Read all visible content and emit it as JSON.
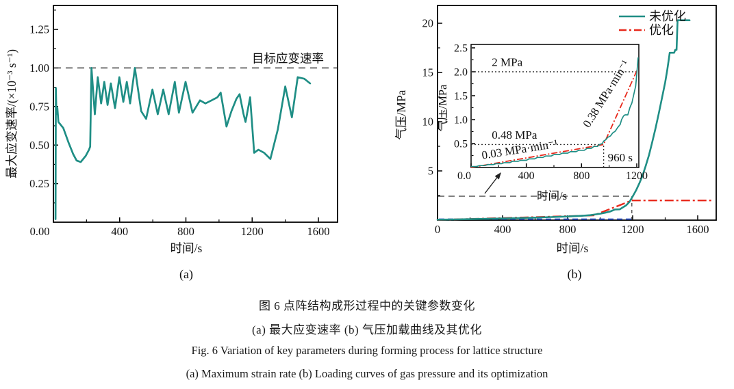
{
  "colors": {
    "teal": "#1f8e85",
    "red": "#e8291c",
    "blue": "#2b50c8",
    "axis": "#000000",
    "dash_gray": "#3a3a3a",
    "text": "#111111"
  },
  "captions": {
    "line1": "图 6  点阵结构成形过程中的关键参数变化",
    "line2": "(a) 最大应变速率    (b) 气压加载曲线及其优化",
    "line3": "Fig. 6  Variation of key parameters during forming process for lattice structure",
    "line4": "(a) Maximum strain rate    (b) Loading curves of gas pressure and its optimization"
  },
  "chart_data": [
    {
      "panel_label": "(a)",
      "type": "line",
      "xlabel": "时间/s",
      "ylabel": "最大应变速率/(×10⁻³ s⁻¹)",
      "xlim": [
        0,
        1716
      ],
      "ylim": [
        0,
        1.405
      ],
      "grid": false,
      "xticks": [
        {
          "v": 0,
          "label": "0.00",
          "dx": -20
        },
        {
          "v": 400,
          "label": "400"
        },
        {
          "v": 800,
          "label": "800"
        },
        {
          "v": 1200,
          "label": "1200"
        },
        {
          "v": 1600,
          "label": "1600"
        }
      ],
      "xminor": [
        200,
        600,
        1000,
        1400
      ],
      "yticks": [
        {
          "v": 0.25,
          "label": "0.25"
        },
        {
          "v": 0.5,
          "label": "0.50"
        },
        {
          "v": 0.75,
          "label": "0.75"
        },
        {
          "v": 1.0,
          "label": "1.00"
        },
        {
          "v": 1.25,
          "label": "1.25"
        }
      ],
      "yminor": [
        0.125,
        0.375,
        0.625,
        0.875,
        1.125,
        1.375
      ],
      "target_line": {
        "y": 1.0,
        "label": "目标应变速率"
      },
      "series": [
        {
          "name": "最大应变速率",
          "color": "teal",
          "style": "solid",
          "x": [
            13,
            15,
            18,
            24,
            30,
            60,
            90,
            120,
            140,
            165,
            195,
            215,
            222,
            230,
            250,
            268,
            288,
            307,
            327,
            347,
            372,
            398,
            422,
            443,
            463,
            492,
            530,
            560,
            598,
            630,
            663,
            696,
            733,
            758,
            798,
            840,
            885,
            918,
            955,
            990,
            1010,
            1045,
            1075,
            1105,
            1124,
            1148,
            1160,
            1188,
            1212,
            1238,
            1272,
            1310,
            1355,
            1400,
            1440,
            1475,
            1515,
            1550
          ],
          "y": [
            0.02,
            0.87,
            0.7,
            0.74,
            0.65,
            0.61,
            0.52,
            0.44,
            0.4,
            0.39,
            0.43,
            0.47,
            0.49,
            1.0,
            0.7,
            0.94,
            0.77,
            0.91,
            0.76,
            0.9,
            0.74,
            0.94,
            0.78,
            0.91,
            0.77,
            1.0,
            0.72,
            0.67,
            0.86,
            0.7,
            0.86,
            0.7,
            0.91,
            0.71,
            0.91,
            0.71,
            0.79,
            0.77,
            0.79,
            0.81,
            0.84,
            0.62,
            0.72,
            0.8,
            0.83,
            0.7,
            0.65,
            0.81,
            0.45,
            0.47,
            0.45,
            0.41,
            0.6,
            0.88,
            0.68,
            0.94,
            0.93,
            0.9
          ]
        }
      ]
    },
    {
      "panel_label": "(b)",
      "type": "line",
      "xlabel": "时间/s",
      "ylabel": "气压/MPa",
      "xlim": [
        0,
        1713
      ],
      "ylim": [
        0,
        21.8
      ],
      "grid": false,
      "xticks": [
        {
          "v": 0,
          "label": "0"
        },
        {
          "v": 400,
          "label": "400"
        },
        {
          "v": 800,
          "label": "800"
        },
        {
          "v": 1200,
          "label": "1200"
        },
        {
          "v": 1600,
          "label": "1600"
        }
      ],
      "xminor": [
        200,
        600,
        1000,
        1400
      ],
      "yticks": [
        {
          "v": 5,
          "label": "5"
        },
        {
          "v": 10,
          "label": "10"
        },
        {
          "v": 15,
          "label": "15"
        },
        {
          "v": 20,
          "label": "20"
        }
      ],
      "yminor": [
        2.5,
        7.5,
        12.5,
        17.5
      ],
      "legend": [
        {
          "label": "未优化",
          "color": "teal",
          "style": "solid"
        },
        {
          "label": "优化",
          "color": "red",
          "style": "dashdot"
        }
      ],
      "marker_lines": {
        "h_y": 2.43,
        "v_x": 1195,
        "blue_y": 0.1,
        "blue_x_end": 1195
      },
      "series": [
        {
          "name": "未优化",
          "color": "teal",
          "style": "solid",
          "x": [
            0,
            100,
            200,
            300,
            400,
            500,
            600,
            700,
            800,
            850,
            900,
            940,
            970,
            1000,
            1030,
            1060,
            1080,
            1090,
            1120,
            1140,
            1160,
            1180,
            1200,
            1220,
            1240,
            1260,
            1280,
            1300,
            1320,
            1340,
            1360,
            1380,
            1400,
            1412,
            1422,
            1428,
            1455,
            1462,
            1470,
            1476,
            1550
          ],
          "y": [
            0.05,
            0.07,
            0.1,
            0.13,
            0.17,
            0.21,
            0.26,
            0.31,
            0.37,
            0.41,
            0.46,
            0.51,
            0.58,
            0.65,
            0.75,
            0.87,
            1.0,
            1.08,
            1.1,
            1.3,
            1.5,
            1.85,
            2.4,
            3.0,
            3.7,
            4.5,
            5.5,
            6.6,
            7.9,
            9.3,
            10.8,
            12.4,
            14.0,
            15.2,
            16.3,
            17.0,
            17.0,
            17.3,
            17.3,
            20.3,
            20.3
          ]
        },
        {
          "name": "优化",
          "color": "red",
          "style": "dashdot",
          "x": [
            0,
            960,
            1195,
            1700
          ],
          "y": [
            0.02,
            0.48,
            2.0,
            2.0
          ]
        }
      ],
      "inset": {
        "xlabel": "时间/s",
        "ylabel": "气压/MPa",
        "xlim": [
          0,
          1215
        ],
        "ylim": [
          0,
          2.57
        ],
        "xticks": [
          {
            "v": 0,
            "label": "0.0",
            "dx": -10
          },
          {
            "v": 400,
            "label": "400"
          },
          {
            "v": 800,
            "label": "800"
          },
          {
            "v": 1200,
            "label": "1200"
          }
        ],
        "xminor": [
          200,
          600,
          1000
        ],
        "yticks": [
          {
            "v": 0.5,
            "label": "0.5"
          },
          {
            "v": 1.0,
            "label": "1.0"
          },
          {
            "v": 1.5,
            "label": "1.5"
          },
          {
            "v": 2.0,
            "label": "2.0"
          },
          {
            "v": 2.5,
            "label": "2.5"
          }
        ],
        "yminor": [
          0.25,
          0.75,
          1.25,
          1.75,
          2.25
        ],
        "dotted_lines": [
          {
            "type": "h",
            "y": 2.0,
            "x0": 0,
            "x1": 1215
          },
          {
            "type": "h",
            "y": 0.48,
            "x0": 0,
            "x1": 960
          },
          {
            "type": "v",
            "x": 960,
            "y0": 0,
            "y1": 0.48
          }
        ],
        "annotations": [
          {
            "text": "2 MPa",
            "s": 150,
            "v": 2.12,
            "anchor": "start",
            "rot": 0
          },
          {
            "text": "0.48 MPa",
            "s": 150,
            "v": 0.6,
            "anchor": "start",
            "rot": 0
          },
          {
            "text": "0.03 MPa·min⁻¹",
            "s": 357,
            "v": 0.3,
            "anchor": "middle",
            "rot": -9
          },
          {
            "text": "0.38 MPa·min⁻¹",
            "s": 1001,
            "v": 1.5,
            "anchor": "middle",
            "rot": -58
          },
          {
            "text": "960 s",
            "s": 990,
            "v": 0.13,
            "anchor": "start",
            "rot": 0
          }
        ],
        "series": [
          {
            "name": "未优化",
            "color": "teal",
            "style": "solid",
            "x": [
              0,
              40,
              60,
              100,
              120,
              160,
              180,
              220,
              240,
              280,
              300,
              340,
              360,
              400,
              420,
              460,
              480,
              520,
              540,
              580,
              600,
              640,
              660,
              700,
              720,
              760,
              780,
              820,
              840,
              870,
              890,
              915,
              930,
              950,
              960,
              975,
              990,
              1010,
              1025,
              1045,
              1060,
              1080,
              1090,
              1105,
              1115,
              1135,
              1150,
              1165,
              1180,
              1192,
              1200,
              1210
            ],
            "y": [
              0.02,
              0.02,
              0.04,
              0.04,
              0.06,
              0.06,
              0.08,
              0.08,
              0.1,
              0.1,
              0.13,
              0.13,
              0.15,
              0.15,
              0.18,
              0.18,
              0.21,
              0.21,
              0.24,
              0.24,
              0.27,
              0.27,
              0.3,
              0.3,
              0.33,
              0.33,
              0.36,
              0.36,
              0.4,
              0.4,
              0.44,
              0.44,
              0.48,
              0.5,
              0.55,
              0.58,
              0.63,
              0.66,
              0.72,
              0.76,
              0.83,
              0.9,
              1.0,
              1.08,
              1.1,
              1.1,
              1.25,
              1.35,
              1.55,
              1.7,
              1.95,
              2.3
            ]
          },
          {
            "name": "优化",
            "color": "red",
            "style": "dashdot",
            "x": [
              0,
              960,
              1205
            ],
            "y": [
              0.0,
              0.48,
              2.05
            ]
          }
        ]
      }
    }
  ]
}
